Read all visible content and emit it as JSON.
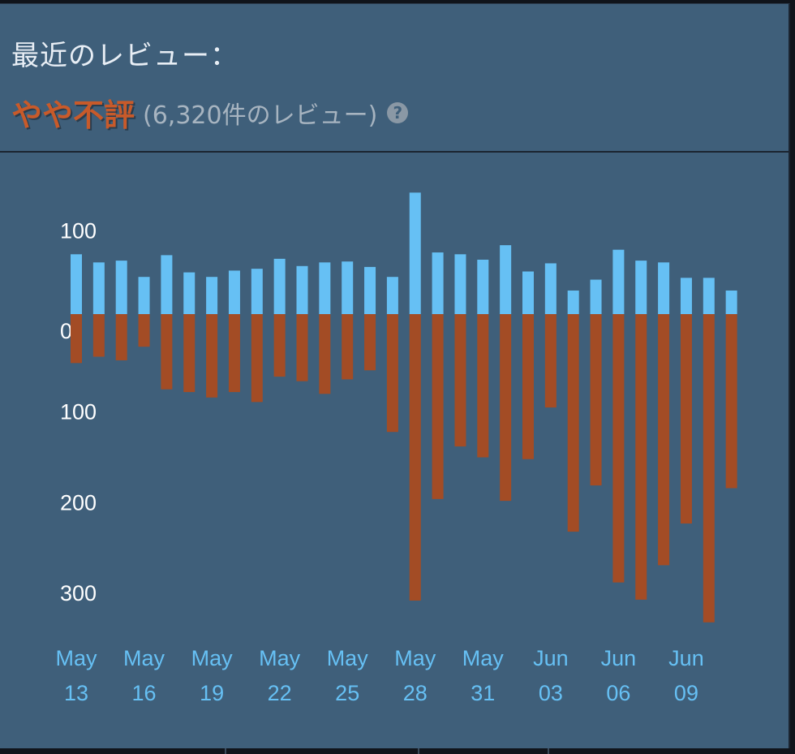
{
  "header": {
    "title": "最近のレビュー：",
    "rating_label": "やや不評",
    "review_count": "(6,320件のレビュー)",
    "help_icon": "question-mark-icon"
  },
  "colors": {
    "positive": "#66c0f4",
    "negative": "#a34c25",
    "rating_label": "#c85a2a",
    "axis_label": "#ffffff",
    "date_label": "#66c0f4",
    "panel_bg": "#3f5f7a"
  },
  "chart_data": {
    "type": "bar",
    "title": "",
    "xlabel": "",
    "ylabel": "",
    "y_ticks": [
      {
        "value": 100,
        "label": "100"
      },
      {
        "value": 0,
        "label": "0"
      },
      {
        "value": -100,
        "label": "100"
      },
      {
        "value": -200,
        "label": "200"
      },
      {
        "value": -300,
        "label": "300"
      }
    ],
    "ylim": [
      -340,
      135
    ],
    "grid": false,
    "legend": "none",
    "categories": [
      "May 13",
      "May 14",
      "May 15",
      "May 16",
      "May 17",
      "May 18",
      "May 19",
      "May 20",
      "May 21",
      "May 22",
      "May 23",
      "May 24",
      "May 25",
      "May 26",
      "May 27",
      "May 28",
      "May 29",
      "May 30",
      "May 31",
      "Jun 01",
      "Jun 02",
      "Jun 03",
      "Jun 04",
      "Jun 05",
      "Jun 06",
      "Jun 07",
      "Jun 08",
      "Jun 09",
      "Jun 10",
      "Jun 11"
    ],
    "series": [
      {
        "values": [
          66,
          57,
          59,
          41,
          65,
          46,
          41,
          48,
          50,
          61,
          53,
          57,
          58,
          52,
          41,
          134,
          68,
          66,
          60,
          76,
          47,
          56,
          26,
          38,
          71,
          59,
          57,
          40,
          40,
          26
        ]
      },
      {
        "values": [
          -54,
          -47,
          -51,
          -36,
          -83,
          -86,
          -92,
          -86,
          -97,
          -69,
          -74,
          -88,
          -72,
          -62,
          -130,
          -316,
          -204,
          -146,
          -158,
          -206,
          -160,
          -103,
          -240,
          -189,
          -296,
          -315,
          -277,
          -231,
          -340,
          -192
        ]
      }
    ],
    "x_tick_labels": [
      {
        "index": 0,
        "month": "May",
        "day": "13"
      },
      {
        "index": 3,
        "month": "May",
        "day": "16"
      },
      {
        "index": 6,
        "month": "May",
        "day": "19"
      },
      {
        "index": 9,
        "month": "May",
        "day": "22"
      },
      {
        "index": 12,
        "month": "May",
        "day": "25"
      },
      {
        "index": 15,
        "month": "May",
        "day": "28"
      },
      {
        "index": 18,
        "month": "May",
        "day": "31"
      },
      {
        "index": 21,
        "month": "Jun",
        "day": "03"
      },
      {
        "index": 24,
        "month": "Jun",
        "day": "06"
      },
      {
        "index": 27,
        "month": "Jun",
        "day": "09"
      }
    ]
  }
}
